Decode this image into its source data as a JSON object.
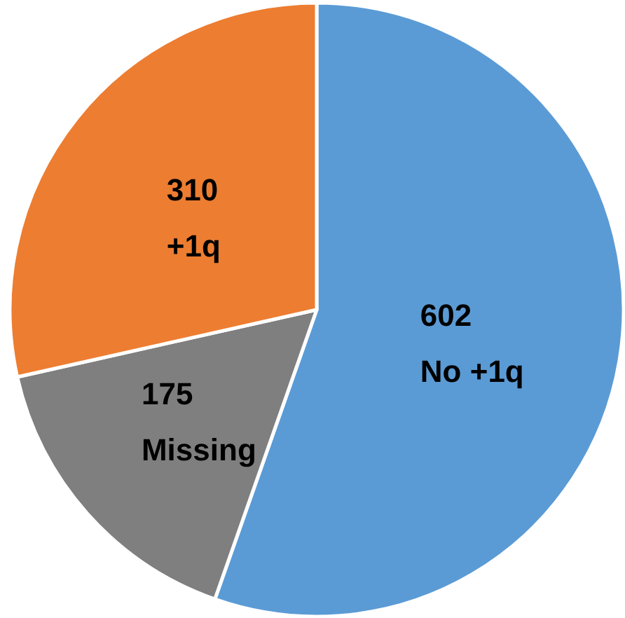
{
  "chart_data": {
    "type": "pie",
    "categories": [
      "No +1q",
      "Missing",
      "+1q"
    ],
    "values": [
      602,
      175,
      310
    ],
    "colors": [
      "#5b9bd5",
      "#7f7f7f",
      "#ed7d31"
    ],
    "data_labels": true,
    "legend": false
  }
}
